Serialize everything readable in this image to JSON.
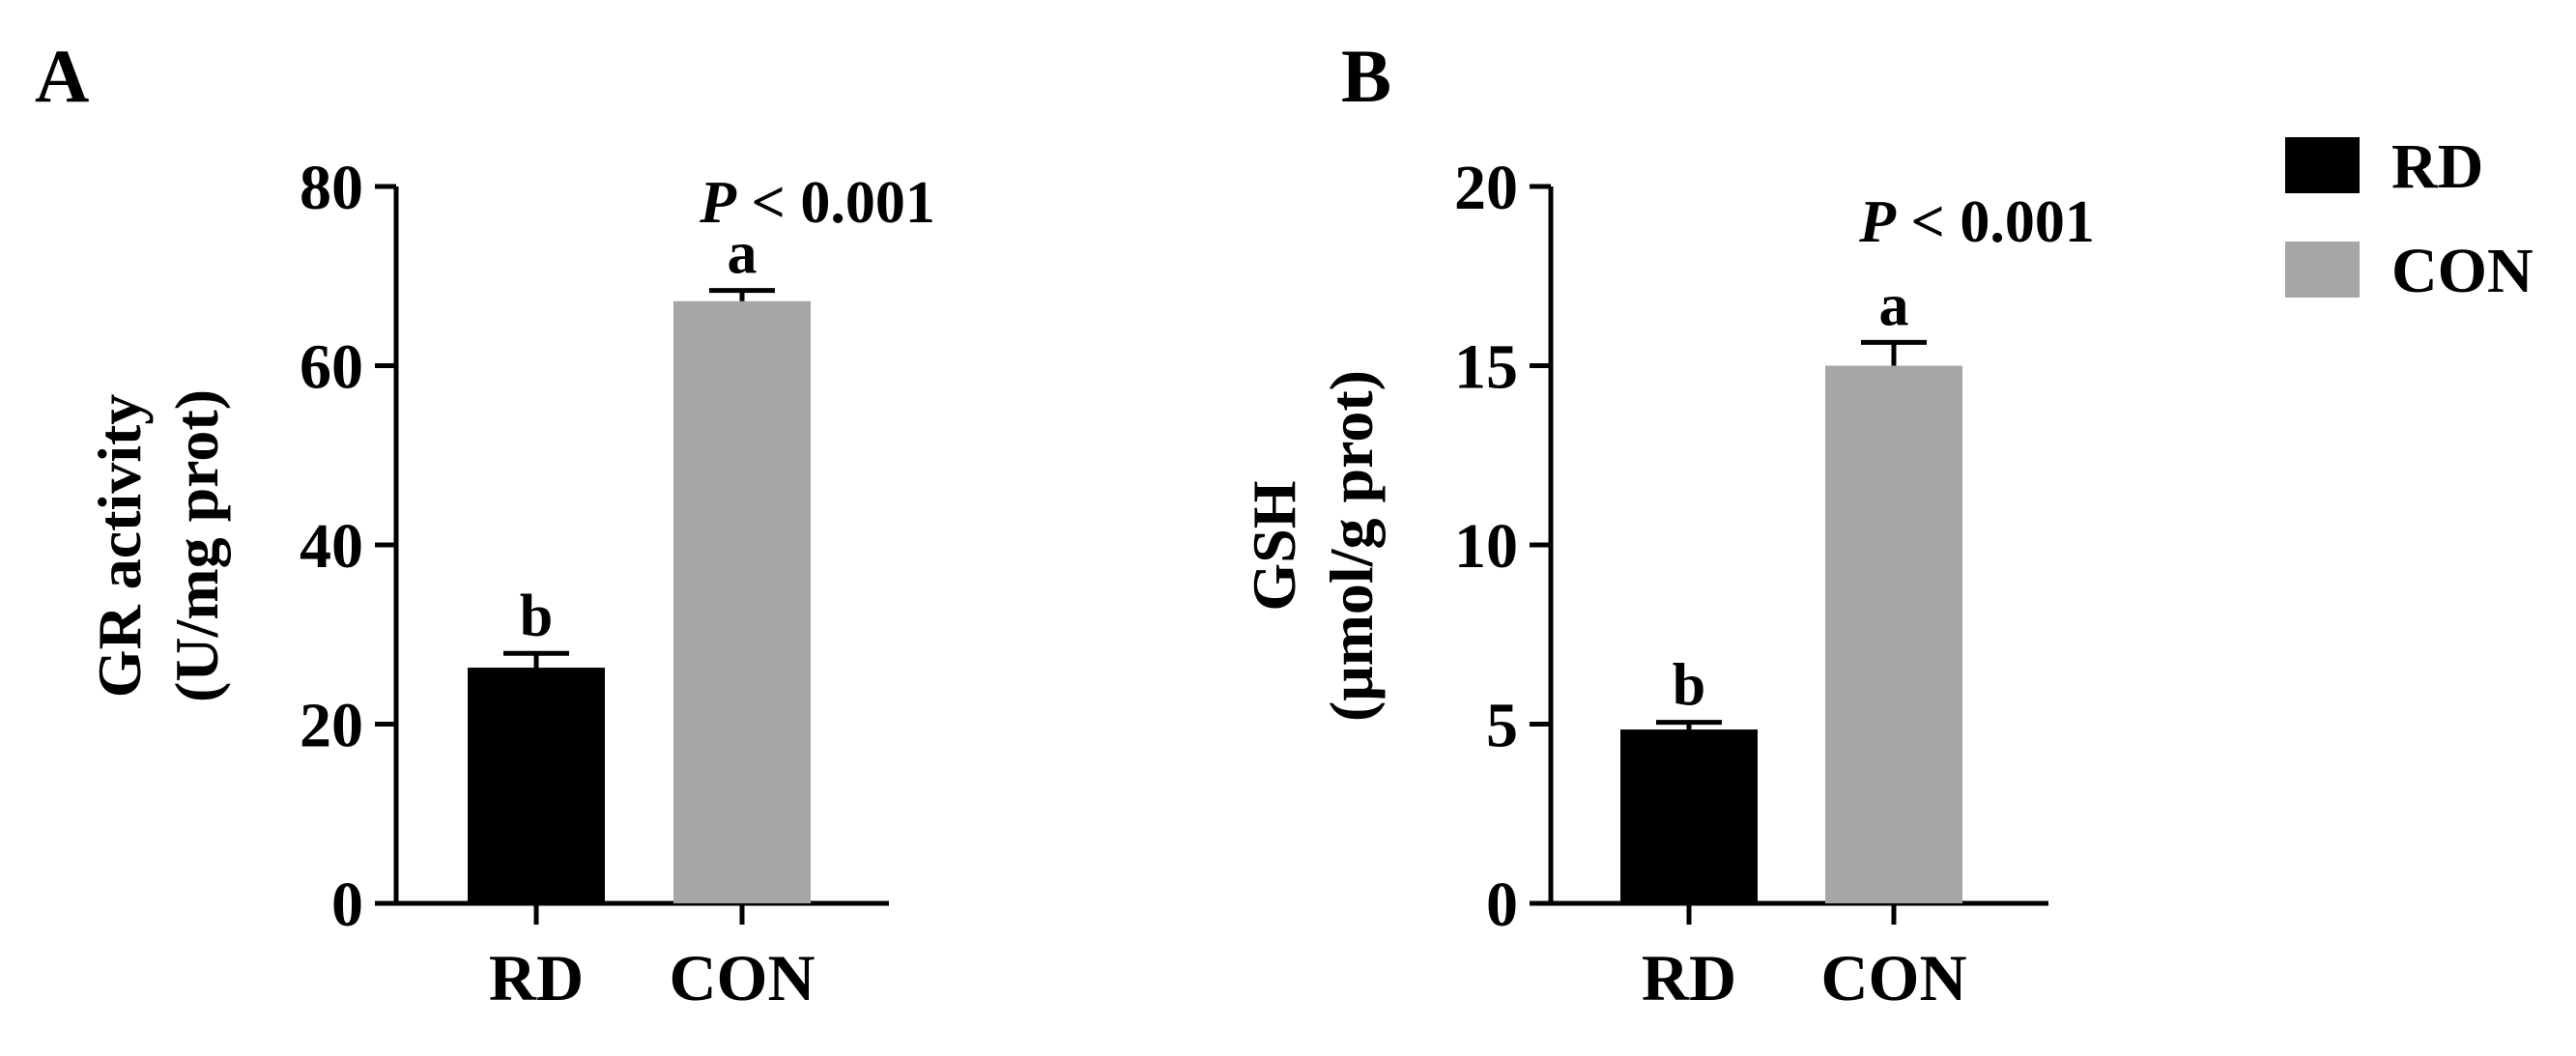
{
  "colors": {
    "RD": "#000000",
    "CON": "#a6a6a8",
    "axis": "#000000"
  },
  "legend": [
    {
      "name": "RD",
      "color": "#000000"
    },
    {
      "name": "CON",
      "color": "#a6a6a8"
    }
  ],
  "chart_data": [
    {
      "type": "bar",
      "panel": "A",
      "categories": [
        "RD",
        "CON"
      ],
      "values": [
        26.3,
        67.2
      ],
      "errors": [
        1.6,
        1.2
      ],
      "sig_letters": [
        "b",
        "a"
      ],
      "ylabel_line1": "GR activity",
      "ylabel_line2": "(U/mg prot)",
      "ylim": [
        0,
        80
      ],
      "yticks": [
        0,
        20,
        40,
        60,
        80
      ],
      "p_value": "< 0.001",
      "p_prefix": "P"
    },
    {
      "type": "bar",
      "panel": "B",
      "categories": [
        "RD",
        "CON"
      ],
      "values": [
        4.85,
        15.0
      ],
      "errors": [
        0.2,
        0.65
      ],
      "sig_letters": [
        "b",
        "a"
      ],
      "ylabel_line1": "GSH",
      "ylabel_line2": "(μmol/g prot)",
      "ylim": [
        0,
        20
      ],
      "yticks": [
        0,
        5,
        10,
        15,
        20
      ],
      "p_value": "< 0.001",
      "p_prefix": "P"
    }
  ]
}
